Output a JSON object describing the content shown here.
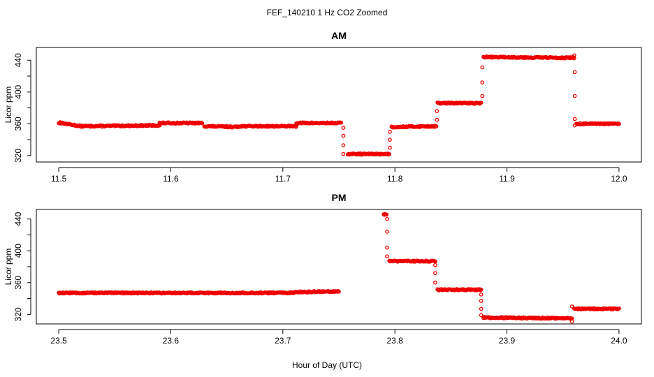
{
  "title": "FEF_140210  1 Hz CO2 Zoomed",
  "xlabel": "Hour of Day (UTC)",
  "colors": {
    "points": "#ee0000",
    "axes": "#000000"
  },
  "chart_data": [
    {
      "type": "scatter",
      "title": "AM",
      "ylabel": "Licor ppm",
      "xlim": [
        11.48,
        12.02
      ],
      "ylim": [
        312,
        456
      ],
      "xticks": [
        "11.5",
        "11.6",
        "11.7",
        "11.8",
        "11.9",
        "12.0"
      ],
      "yticks": [
        "320",
        "360",
        "400",
        "440"
      ],
      "segments": [
        {
          "x": [
            11.5,
            11.502
          ],
          "y": [
            361,
            362
          ]
        },
        {
          "x": [
            11.502,
            11.52
          ],
          "y": [
            361,
            357
          ]
        },
        {
          "x": [
            11.52,
            11.59
          ],
          "y": [
            357,
            358
          ]
        },
        {
          "x": [
            11.59,
            11.628
          ],
          "y": [
            361,
            361
          ]
        },
        {
          "x": [
            11.63,
            11.66
          ],
          "y": [
            357,
            356
          ]
        },
        {
          "x": [
            11.66,
            11.712
          ],
          "y": [
            357,
            357
          ]
        },
        {
          "x": [
            11.712,
            11.752
          ],
          "y": [
            361,
            361
          ]
        },
        {
          "x": [
            11.758,
            11.795
          ],
          "y": [
            322,
            322
          ]
        },
        {
          "x": [
            11.797,
            11.837
          ],
          "y": [
            356,
            357
          ]
        },
        {
          "x": [
            11.838,
            11.877
          ],
          "y": [
            386,
            386
          ]
        },
        {
          "x": [
            11.879,
            11.96
          ],
          "y": [
            444,
            443
          ]
        },
        {
          "x": [
            11.962,
            12.0
          ],
          "y": [
            360,
            360
          ]
        }
      ],
      "transitions": [
        {
          "x": 11.754,
          "y": [
            355,
            345,
            333,
            322
          ]
        },
        {
          "x": 11.7955,
          "y": [
            330,
            340,
            350
          ]
        },
        {
          "x": 11.8375,
          "y": [
            365,
            376
          ]
        },
        {
          "x": 11.878,
          "y": [
            395,
            412,
            431
          ]
        },
        {
          "x": 11.96,
          "y": [
            446
          ]
        },
        {
          "x": 11.9605,
          "y": [
            425,
            395,
            366,
            358
          ]
        }
      ]
    },
    {
      "type": "scatter",
      "title": "PM",
      "ylabel": "Licor ppm",
      "xlim": [
        23.48,
        24.02
      ],
      "ylim": [
        308,
        452
      ],
      "xticks": [
        "23.5",
        "23.6",
        "23.7",
        "23.8",
        "23.9",
        "24.0"
      ],
      "yticks": [
        "320",
        "360",
        "400",
        "440"
      ],
      "segments": [
        {
          "x": [
            23.5,
            23.71
          ],
          "y": [
            347,
            347
          ]
        },
        {
          "x": [
            23.71,
            23.75
          ],
          "y": [
            348,
            349
          ]
        },
        {
          "x": [
            23.79,
            23.7925
          ],
          "y": [
            446,
            446
          ]
        },
        {
          "x": [
            23.795,
            23.836
          ],
          "y": [
            387,
            387
          ]
        },
        {
          "x": [
            23.838,
            23.877
          ],
          "y": [
            351,
            351
          ]
        },
        {
          "x": [
            23.879,
            23.958
          ],
          "y": [
            316,
            315
          ]
        },
        {
          "x": [
            23.96,
            24.0
          ],
          "y": [
            327,
            327
          ]
        }
      ],
      "transitions": [
        {
          "x": 23.793,
          "y": [
            440,
            424,
            404,
            393
          ]
        },
        {
          "x": 23.836,
          "y": [
            382,
            372,
            360
          ]
        },
        {
          "x": 23.877,
          "y": [
            345,
            337,
            327,
            319
          ]
        },
        {
          "x": 23.958,
          "y": [
            311,
            330
          ]
        }
      ]
    }
  ]
}
